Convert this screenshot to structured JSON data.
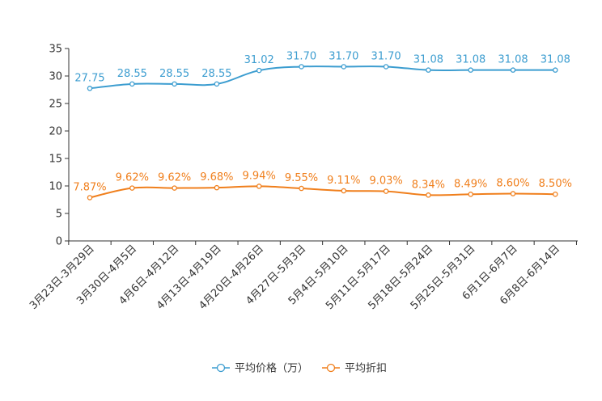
{
  "chart_data": {
    "type": "line",
    "categories": [
      "3月23日-3月29日",
      "3月30日-4月5日",
      "4月6日-4月12日",
      "4月13日-4月19日",
      "4月20日-4月26日",
      "4月27日-5月3日",
      "5月4日-5月10日",
      "5月11日-5月17日",
      "5月18日-5月24日",
      "5月25日-5月31日",
      "6月1日-6月7日",
      "6月8日-6月14日"
    ],
    "series": [
      {
        "name": "平均价格（万）",
        "color": "#3c9dd0",
        "values": [
          27.75,
          28.55,
          28.55,
          28.55,
          31.02,
          31.7,
          31.7,
          31.7,
          31.08,
          31.08,
          31.08,
          31.08
        ],
        "labels": [
          "27.75",
          "28.55",
          "28.55",
          "28.55",
          "31.02",
          "31.70",
          "31.70",
          "31.70",
          "31.08",
          "31.08",
          "31.08",
          "31.08"
        ]
      },
      {
        "name": "平均折扣",
        "color": "#f07f1c",
        "values": [
          7.87,
          9.62,
          9.62,
          9.68,
          9.94,
          9.55,
          9.11,
          9.03,
          8.34,
          8.49,
          8.6,
          8.5
        ],
        "labels": [
          "7.87%",
          "9.62%",
          "9.62%",
          "9.68%",
          "9.94%",
          "9.55%",
          "9.11%",
          "9.03%",
          "8.34%",
          "8.49%",
          "8.60%",
          "8.50%"
        ]
      }
    ],
    "ylim": [
      0,
      35
    ],
    "yticks": [
      0,
      5,
      10,
      15,
      20,
      25,
      30,
      35
    ],
    "grid": false,
    "legend_position": "bottom-center",
    "title": "",
    "xlabel": "",
    "ylabel": ""
  }
}
